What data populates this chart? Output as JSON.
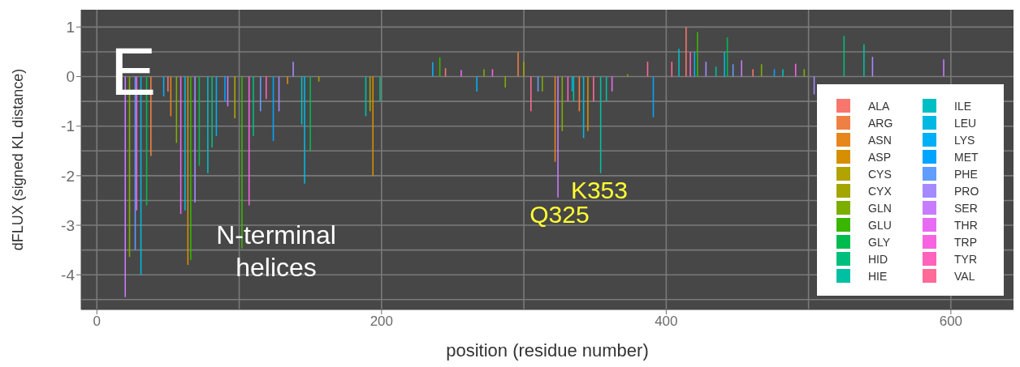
{
  "chart_data": {
    "type": "bar",
    "xlabel": "position (residue number)",
    "ylabel": "dFLUX (signed KL distance)",
    "xlim": [
      -11,
      644
    ],
    "ylim": [
      -4.7,
      1.35
    ],
    "xticks": [
      0,
      200,
      400,
      600
    ],
    "yticks": [
      -4,
      -3,
      -2,
      -1,
      0,
      1
    ],
    "grid": true,
    "legend": "right",
    "annotations": [
      "E",
      "N-terminal helices",
      {
        "text": "Q325",
        "x": 325,
        "y": -2.44
      },
      {
        "text": "K353",
        "x": 353,
        "y": -1.95
      }
    ],
    "series": [
      {
        "name": "ALA",
        "color": "#f8766d",
        "x": [
          50,
          245,
          414,
          461
        ],
        "values": [
          -0.3,
          0.17,
          1.0,
          0.15
        ]
      },
      {
        "name": "ARG",
        "color": "#ee8044",
        "x": [
          38,
          296,
          339
        ],
        "values": [
          -1.6,
          0.49,
          -0.7
        ]
      },
      {
        "name": "ASN",
        "color": "#e7861b",
        "x": [
          52,
          134,
          322
        ],
        "values": [
          -0.8,
          -0.15,
          -1.72
        ]
      },
      {
        "name": "ASP",
        "color": "#d58f00",
        "x": [
          64,
          194,
          345
        ],
        "values": [
          -3.8,
          -2.0,
          -1.1
        ]
      },
      {
        "name": "CYS",
        "color": "#b2a300",
        "x": [
          97,
          156
        ],
        "values": [
          -0.84,
          -0.1
        ]
      },
      {
        "name": "CYX",
        "color": "#a3a500",
        "x": [
          192,
          300
        ],
        "values": [
          -0.7,
          0.3
        ]
      },
      {
        "name": "GLN",
        "color": "#7cae00",
        "x": [
          23,
          56,
          272,
          287,
          313,
          327,
          373,
          467,
          497
        ],
        "values": [
          -3.64,
          -1.34,
          0.15,
          -0.22,
          -0.3,
          -1.1,
          0.05,
          0.25,
          0.15
        ]
      },
      {
        "name": "GLU",
        "color": "#39b600",
        "x": [
          66,
          102,
          241,
          422
        ],
        "values": [
          -3.7,
          -3.47,
          0.39,
          0.9
        ]
      },
      {
        "name": "GLY",
        "color": "#00bb4e",
        "x": [
          35,
          72,
          150,
          443
        ],
        "values": [
          -2.6,
          -1.8,
          -1.5,
          0.79
        ]
      },
      {
        "name": "HID",
        "color": "#00bf7d",
        "x": [
          81,
          110,
          199,
          525
        ],
        "values": [
          -1.43,
          -1.2,
          -0.5,
          0.82
        ]
      },
      {
        "name": "HIE",
        "color": "#00c0a3",
        "x": [
          189,
          335,
          354,
          358,
          435,
          539
        ],
        "values": [
          -0.8,
          -0.5,
          -1.95,
          -0.5,
          0.2,
          0.65
        ]
      },
      {
        "name": "ILE",
        "color": "#00bfc4",
        "x": [
          78,
          144,
          409,
          482
        ],
        "values": [
          -1.95,
          -0.97,
          0.56,
          0.15
        ]
      },
      {
        "name": "LEU",
        "color": "#00b9e3",
        "x": [
          31,
          62,
          146,
          342,
          441
        ],
        "values": [
          -4.0,
          -2.7,
          -2.16,
          -1.24,
          0.5
        ]
      },
      {
        "name": "LYS",
        "color": "#00b0f6",
        "x": [
          47,
          84,
          236,
          267,
          334,
          420
        ],
        "values": [
          -0.4,
          -1.2,
          0.29,
          -0.3,
          -0.3,
          0.5
        ]
      },
      {
        "name": "MET",
        "color": "#00a5ff",
        "x": [
          90,
          124,
          391,
          476
        ],
        "values": [
          -0.5,
          -1.3,
          -0.82,
          0.15
        ]
      },
      {
        "name": "PHE",
        "color": "#619cff",
        "x": [
          27,
          115,
          310,
          447
        ],
        "values": [
          -3.5,
          -0.7,
          -0.3,
          0.25
        ]
      },
      {
        "name": "PRO",
        "color": "#a58aff",
        "x": [
          69,
          128,
          138,
          428,
          504,
          545
        ],
        "values": [
          -2.54,
          -0.7,
          0.3,
          0.3,
          -0.36,
          0.4
        ]
      },
      {
        "name": "SER",
        "color": "#c77cff",
        "x": [
          20,
          92,
          324,
          453,
          595
        ],
        "values": [
          -4.45,
          -0.6,
          -2.44,
          0.33,
          0.35
        ]
      },
      {
        "name": "THR",
        "color": "#e76bf3",
        "x": [
          28,
          59,
          256,
          362
        ],
        "values": [
          -2.7,
          -2.77,
          0.13,
          -0.3
        ]
      },
      {
        "name": "TRP",
        "color": "#f763e0",
        "x": [
          107,
          278,
          491
        ],
        "values": [
          -2.6,
          0.15,
          0.26
        ]
      },
      {
        "name": "TYR",
        "color": "#ff62bc",
        "x": [
          119,
          331,
          417
        ],
        "values": [
          -0.45,
          -0.5,
          0.5
        ]
      },
      {
        "name": "VAL",
        "color": "#ff6a98",
        "x": [
          305,
          349,
          387,
          404
        ],
        "values": [
          -0.7,
          -0.5,
          0.3,
          0.3
        ]
      }
    ]
  }
}
